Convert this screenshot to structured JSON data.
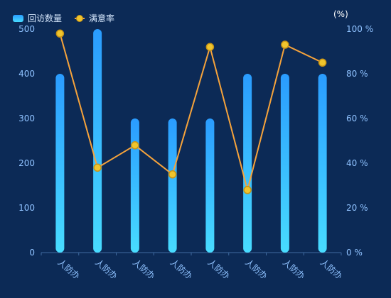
{
  "legend": {
    "bar_label": "回访数量",
    "line_label": "满意率"
  },
  "unit": {
    "right_axis": "(%)"
  },
  "colors": {
    "background": "#0c2a56",
    "axis_text": "#8fc2ff",
    "bar_top": "#2a9cff",
    "bar_bottom": "#48dcff",
    "line": "#f6a33b",
    "point_fill": "#f0c52d",
    "point_stroke": "#c89416"
  },
  "chart_data": {
    "type": "bar",
    "categories": [
      "人防办",
      "人防办",
      "人防办",
      "人防办",
      "人防办",
      "人防办",
      "人防办",
      "人防办"
    ],
    "series": [
      {
        "name": "回访数量",
        "type": "bar",
        "axis": "left",
        "values": [
          400,
          500,
          300,
          300,
          300,
          400,
          400,
          400
        ]
      },
      {
        "name": "满意率",
        "type": "line",
        "axis": "right",
        "values": [
          98,
          38,
          48,
          35,
          92,
          28,
          93,
          85
        ]
      }
    ],
    "left_axis": {
      "min": 0,
      "max": 500,
      "ticks": [
        "0",
        "100",
        "200",
        "300",
        "400",
        "500"
      ]
    },
    "right_axis": {
      "min": 0,
      "max": 100,
      "ticks": [
        "0 %",
        "20 %",
        "40 %",
        "60 %",
        "80 %",
        "100 %"
      ]
    },
    "grid": false,
    "legend_position": "top-left"
  }
}
